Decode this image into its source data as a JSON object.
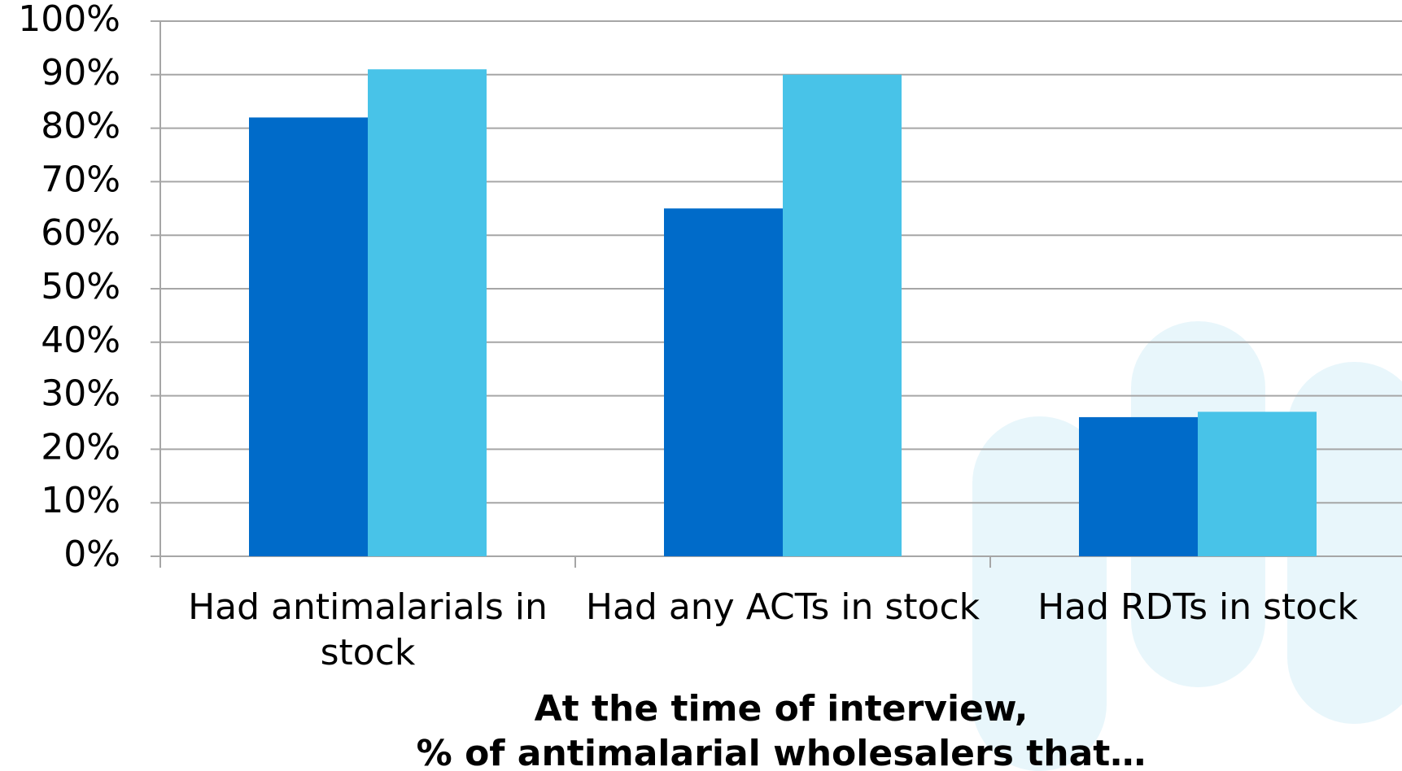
{
  "chart_data": {
    "type": "bar",
    "categories": [
      "Had antimalarials in stock",
      "Had any ACTs in stock",
      "Had RDTs in stock"
    ],
    "series": [
      {
        "color": "#006bc9",
        "values": [
          82,
          65,
          26
        ]
      },
      {
        "color": "#48c3e8",
        "values": [
          91,
          90,
          27
        ]
      }
    ],
    "ylim": [
      0,
      100
    ],
    "yticks": [
      {
        "value": 0,
        "label": "0%"
      },
      {
        "value": 10,
        "label": "10%"
      },
      {
        "value": 20,
        "label": "20%"
      },
      {
        "value": 30,
        "label": "30%"
      },
      {
        "value": 40,
        "label": "40%"
      },
      {
        "value": 50,
        "label": "50%"
      },
      {
        "value": 60,
        "label": "60%"
      },
      {
        "value": 70,
        "label": "70%"
      },
      {
        "value": 80,
        "label": "80%"
      },
      {
        "value": 90,
        "label": "90%"
      },
      {
        "value": 100,
        "label": "100%"
      }
    ],
    "xlabel": [
      "At the time of interview,",
      "% of  antimalarial wholesalers that…"
    ],
    "grid": true
  }
}
